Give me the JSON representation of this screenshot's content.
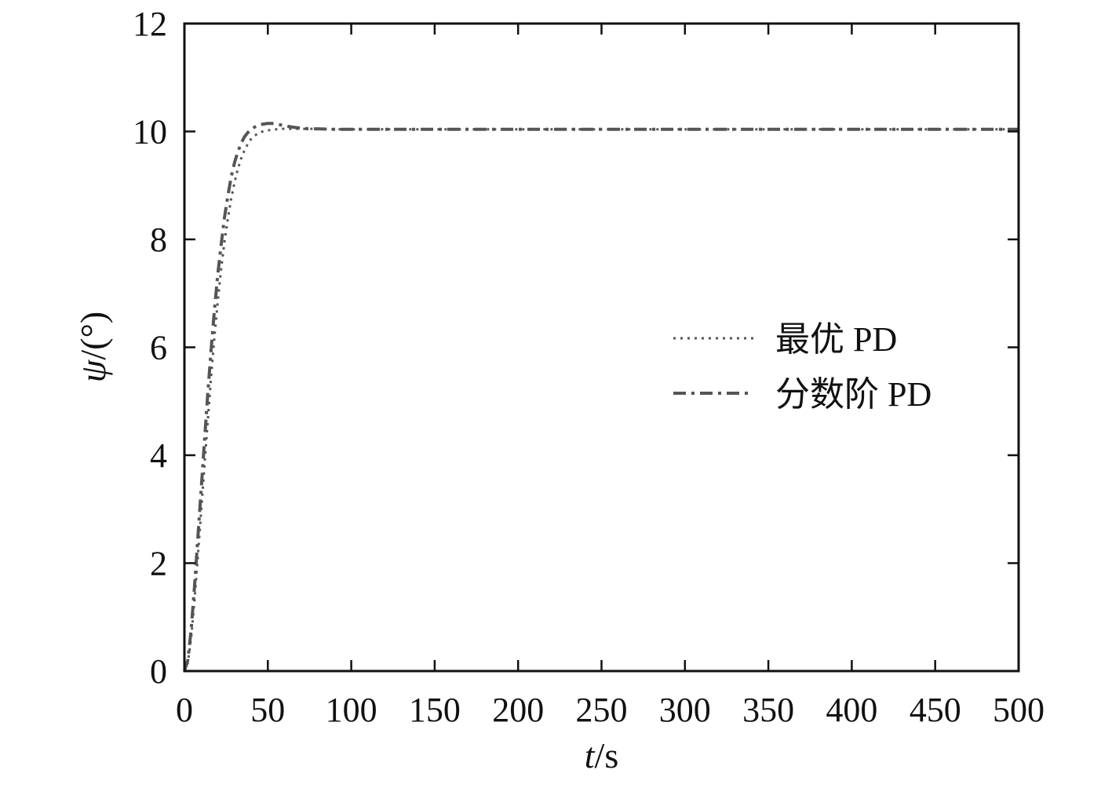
{
  "chart_data": {
    "type": "line",
    "xlabel": {
      "italic": "t",
      "rest": "/s"
    },
    "ylabel": {
      "italic": "ψ",
      "rest": "/(°)"
    },
    "xlim": [
      0,
      500
    ],
    "ylim": [
      0,
      12
    ],
    "x_ticks": [
      0,
      50,
      100,
      150,
      200,
      250,
      300,
      350,
      400,
      450,
      500
    ],
    "y_ticks": [
      0,
      2,
      4,
      6,
      8,
      10,
      12
    ],
    "grid": false,
    "legend_position": "center-right",
    "series": [
      {
        "name": "最优 PD",
        "style": "dotted",
        "color": "#555555",
        "x": [
          0,
          2,
          4,
          6,
          8,
          10,
          12,
          14,
          16,
          18,
          20,
          22,
          24,
          26,
          28,
          30,
          32,
          34,
          36,
          38,
          40,
          42,
          44,
          46,
          48,
          50,
          52,
          55,
          58,
          61,
          65,
          70,
          75,
          80,
          90,
          100,
          120,
          150,
          200,
          250,
          300,
          350,
          400,
          450,
          500
        ],
        "y": [
          0,
          0.15,
          0.6,
          1.3,
          2.1,
          2.95,
          3.8,
          4.65,
          5.45,
          6.2,
          6.85,
          7.45,
          7.95,
          8.38,
          8.75,
          9.05,
          9.3,
          9.5,
          9.65,
          9.77,
          9.86,
          9.92,
          9.96,
          9.99,
          10.01,
          10.02,
          10.03,
          10.04,
          10.05,
          10.05,
          10.05,
          10.05,
          10.05,
          10.05,
          10.04,
          10.04,
          10.04,
          10.04,
          10.04,
          10.04,
          10.04,
          10.04,
          10.04,
          10.04,
          10.04
        ]
      },
      {
        "name": "分数阶 PD",
        "style": "dashdot",
        "color": "#555555",
        "x": [
          0,
          2,
          4,
          6,
          8,
          10,
          12,
          14,
          16,
          18,
          20,
          22,
          24,
          26,
          28,
          30,
          32,
          34,
          36,
          38,
          40,
          42,
          44,
          46,
          48,
          50,
          52,
          55,
          58,
          61,
          65,
          70,
          75,
          80,
          90,
          100,
          120,
          150,
          200,
          250,
          300,
          350,
          400,
          450,
          500
        ],
        "y": [
          0,
          0.2,
          0.75,
          1.55,
          2.45,
          3.35,
          4.25,
          5.15,
          5.95,
          6.7,
          7.35,
          7.9,
          8.4,
          8.8,
          9.15,
          9.42,
          9.62,
          9.78,
          9.9,
          9.98,
          10.04,
          10.08,
          10.11,
          10.13,
          10.14,
          10.15,
          10.15,
          10.14,
          10.12,
          10.1,
          10.08,
          10.06,
          10.05,
          10.05,
          10.04,
          10.04,
          10.04,
          10.04,
          10.04,
          10.04,
          10.04,
          10.04,
          10.04,
          10.04,
          10.04
        ]
      }
    ]
  }
}
